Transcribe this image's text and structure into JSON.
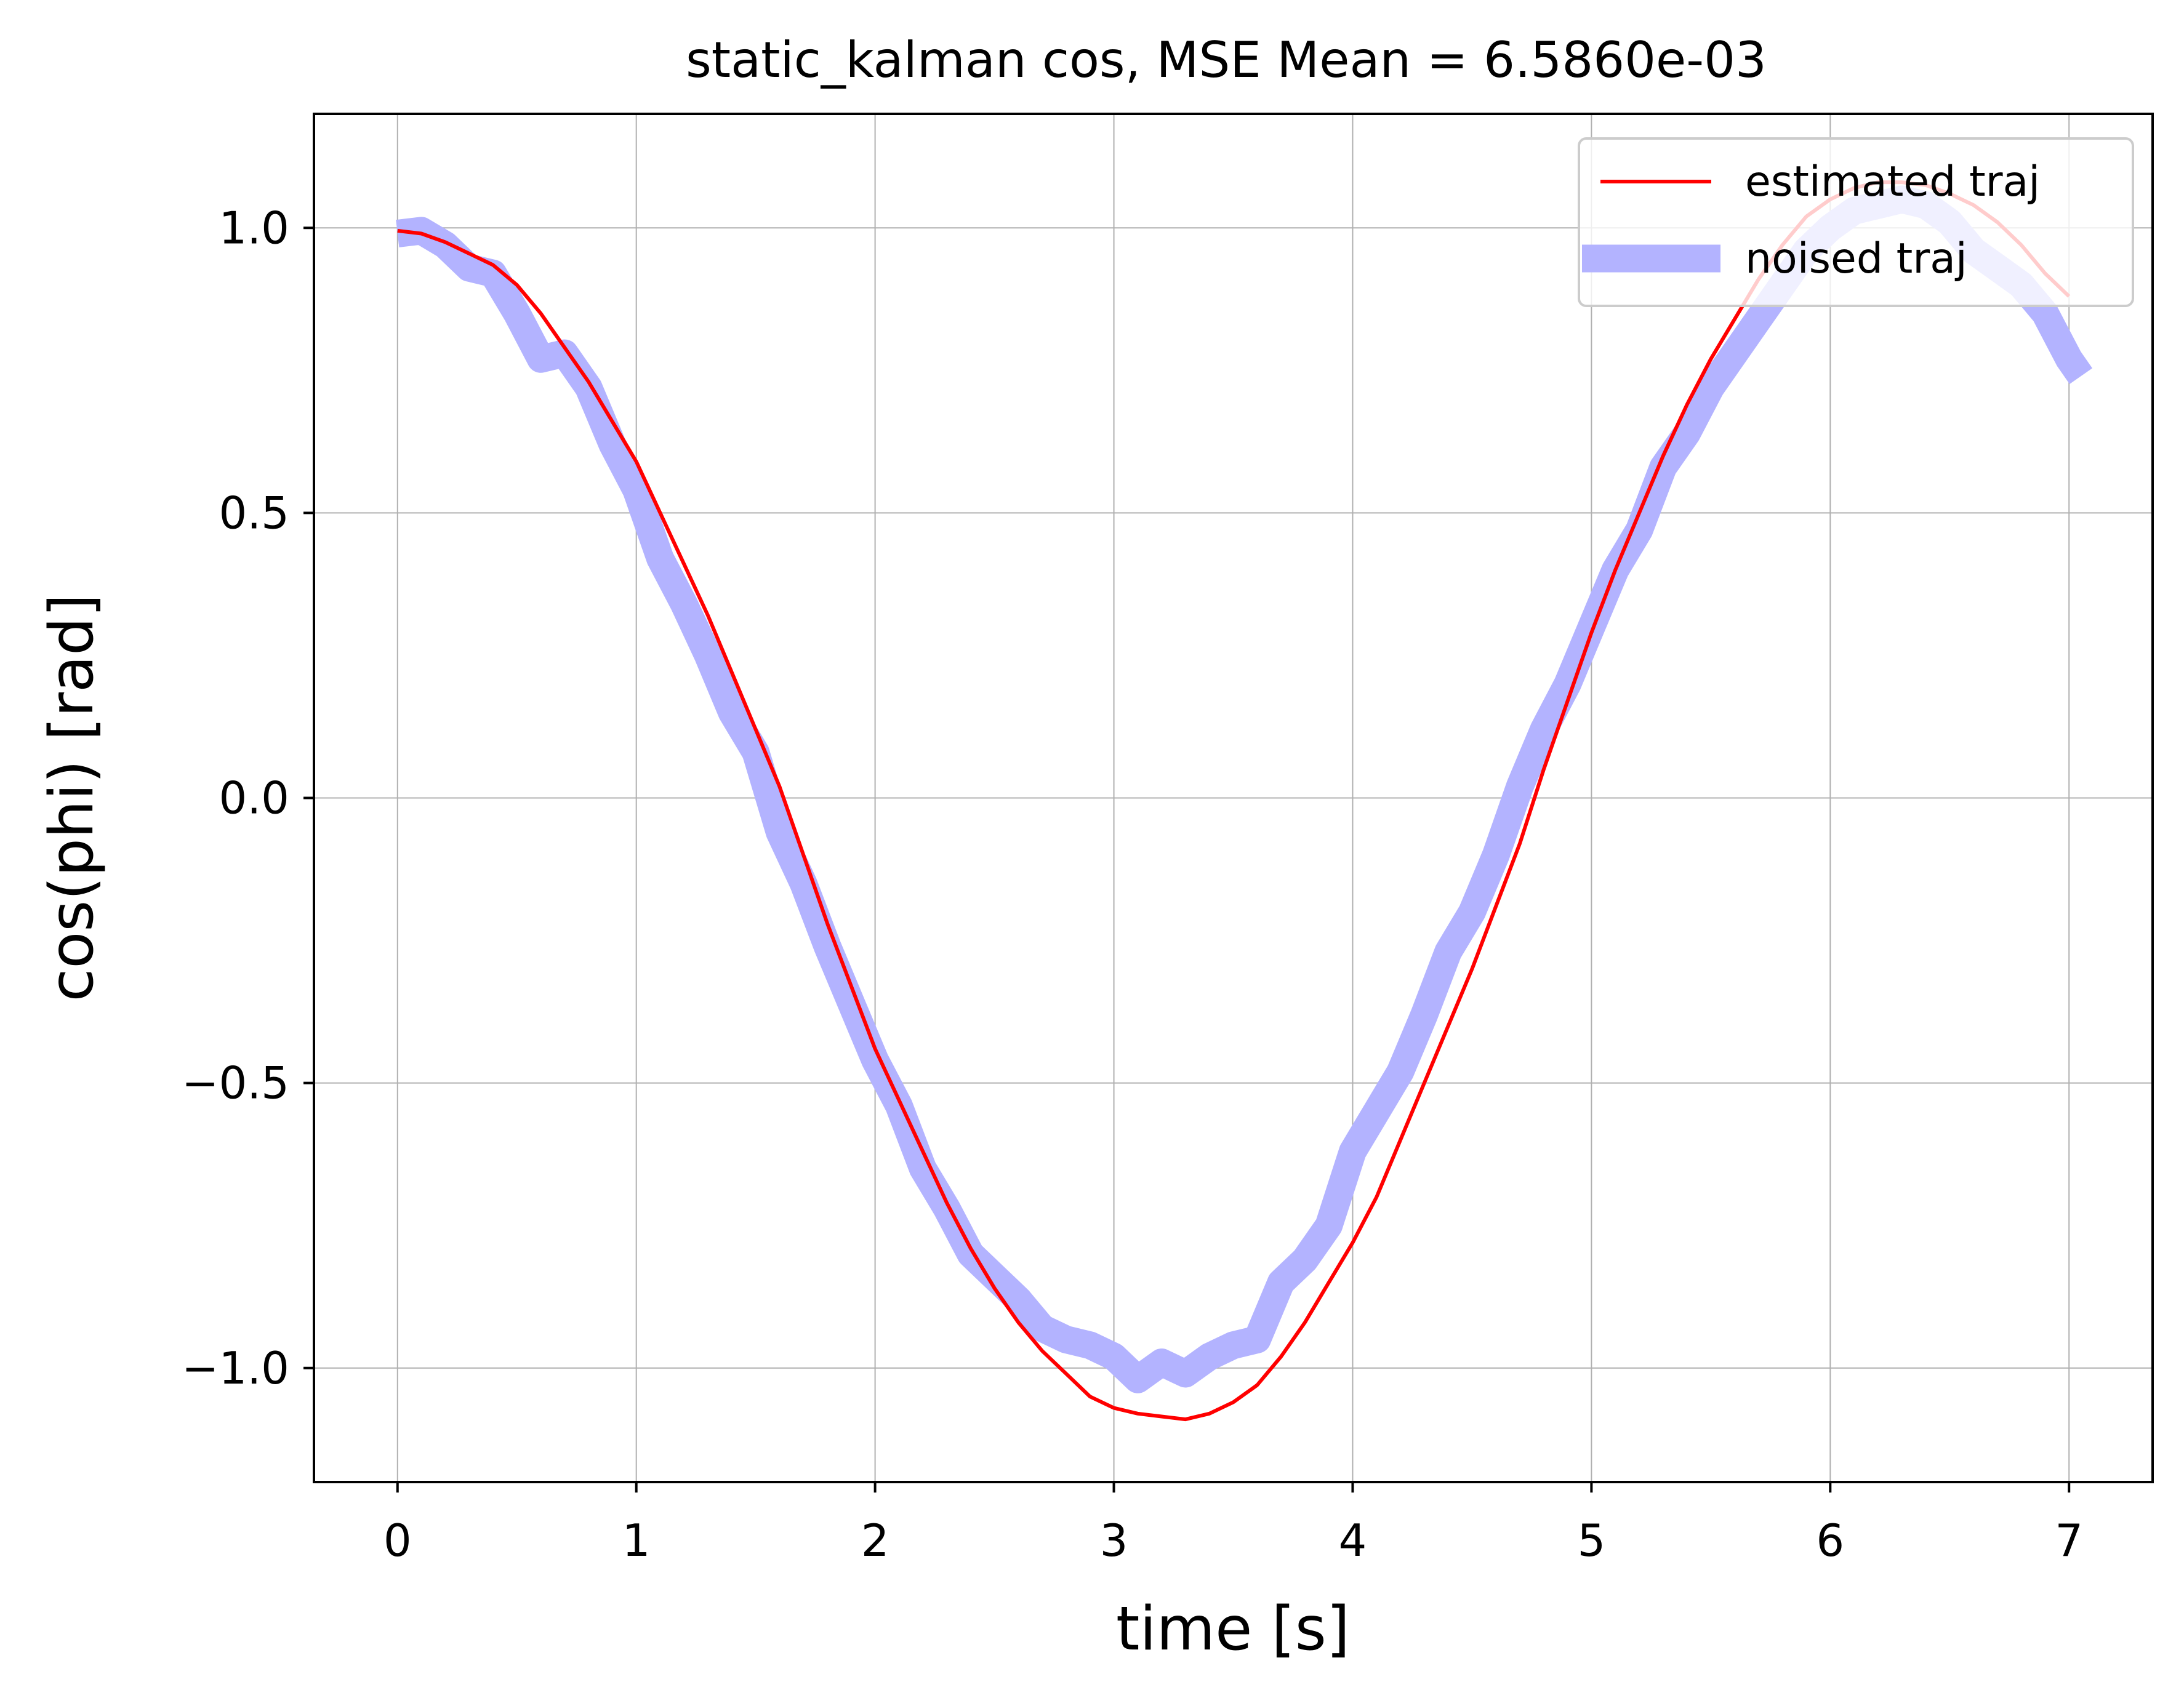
{
  "chart_data": {
    "type": "line",
    "title": "static_kalman cos, MSE Mean = 6.5860e-03",
    "xlabel": "time [s]",
    "ylabel": "cos(phi) [rad]",
    "xlim": [
      -0.35,
      7.35
    ],
    "ylim": [
      -1.2,
      1.2
    ],
    "x_ticks": [
      0,
      1,
      2,
      3,
      4,
      5,
      6,
      7
    ],
    "x_tick_labels": [
      "0",
      "1",
      "2",
      "3",
      "4",
      "5",
      "6",
      "7"
    ],
    "y_ticks": [
      -1.0,
      -0.5,
      0.0,
      0.5,
      1.0
    ],
    "y_tick_labels": [
      "−1.0",
      "−0.5",
      "0.0",
      "0.5",
      "1.0"
    ],
    "grid": true,
    "legend_position": "top-right",
    "series": [
      {
        "name": "estimated traj",
        "color": "#ff0000",
        "x": [
          0,
          0.1,
          0.2,
          0.3,
          0.4,
          0.5,
          0.6,
          0.7,
          0.8,
          0.9,
          1.0,
          1.1,
          1.2,
          1.3,
          1.4,
          1.5,
          1.6,
          1.7,
          1.8,
          1.9,
          2.0,
          2.1,
          2.2,
          2.3,
          2.4,
          2.5,
          2.6,
          2.7,
          2.8,
          2.9,
          3.0,
          3.1,
          3.2,
          3.3,
          3.4,
          3.5,
          3.6,
          3.7,
          3.8,
          3.9,
          4.0,
          4.1,
          4.2,
          4.3,
          4.4,
          4.5,
          4.6,
          4.7,
          4.8,
          4.9,
          5.0,
          5.1,
          5.2,
          5.3,
          5.4,
          5.5,
          5.6,
          5.7,
          5.8,
          5.9,
          6.0,
          6.1,
          6.2,
          6.3,
          6.4,
          6.5,
          6.6,
          6.7,
          6.8,
          6.9,
          7.0
        ],
        "y": [
          0.995,
          0.99,
          0.975,
          0.955,
          0.935,
          0.9,
          0.85,
          0.79,
          0.73,
          0.66,
          0.59,
          0.5,
          0.41,
          0.32,
          0.22,
          0.12,
          0.02,
          -0.1,
          -0.22,
          -0.33,
          -0.44,
          -0.53,
          -0.62,
          -0.71,
          -0.79,
          -0.86,
          -0.92,
          -0.97,
          -1.01,
          -1.05,
          -1.07,
          -1.08,
          -1.085,
          -1.09,
          -1.08,
          -1.06,
          -1.03,
          -0.98,
          -0.92,
          -0.85,
          -0.78,
          -0.7,
          -0.6,
          -0.5,
          -0.4,
          -0.3,
          -0.19,
          -0.08,
          0.05,
          0.17,
          0.29,
          0.4,
          0.5,
          0.6,
          0.69,
          0.77,
          0.84,
          0.91,
          0.97,
          1.02,
          1.05,
          1.07,
          1.08,
          1.08,
          1.075,
          1.06,
          1.04,
          1.01,
          0.97,
          0.92,
          0.88
        ]
      },
      {
        "name": "noised traj",
        "color": "#b3b3ff",
        "x": [
          0,
          0.1,
          0.2,
          0.3,
          0.4,
          0.5,
          0.6,
          0.7,
          0.8,
          0.9,
          1.0,
          1.1,
          1.2,
          1.3,
          1.4,
          1.5,
          1.6,
          1.7,
          1.8,
          1.9,
          2.0,
          2.1,
          2.2,
          2.3,
          2.4,
          2.5,
          2.6,
          2.7,
          2.8,
          2.9,
          3.0,
          3.1,
          3.2,
          3.3,
          3.4,
          3.5,
          3.6,
          3.7,
          3.8,
          3.9,
          4.0,
          4.1,
          4.2,
          4.3,
          4.4,
          4.5,
          4.6,
          4.7,
          4.8,
          4.9,
          5.0,
          5.1,
          5.2,
          5.3,
          5.4,
          5.5,
          5.6,
          5.7,
          5.8,
          5.9,
          6.0,
          6.1,
          6.2,
          6.3,
          6.4,
          6.5,
          6.6,
          6.7,
          6.8,
          6.9,
          7.0,
          7.05
        ],
        "y": [
          0.99,
          0.995,
          0.97,
          0.93,
          0.92,
          0.85,
          0.77,
          0.78,
          0.72,
          0.62,
          0.54,
          0.42,
          0.34,
          0.25,
          0.15,
          0.08,
          -0.06,
          -0.15,
          -0.26,
          -0.36,
          -0.46,
          -0.54,
          -0.65,
          -0.72,
          -0.8,
          -0.84,
          -0.88,
          -0.93,
          -0.95,
          -0.96,
          -0.98,
          -1.02,
          -0.99,
          -1.01,
          -0.98,
          -0.96,
          -0.95,
          -0.85,
          -0.81,
          -0.75,
          -0.62,
          -0.55,
          -0.48,
          -0.38,
          -0.27,
          -0.2,
          -0.1,
          0.02,
          0.12,
          0.2,
          0.3,
          0.4,
          0.47,
          0.58,
          0.64,
          0.72,
          0.78,
          0.84,
          0.9,
          0.96,
          1.0,
          1.03,
          1.04,
          1.05,
          1.04,
          1.01,
          0.96,
          0.93,
          0.9,
          0.85,
          0.77,
          0.74
        ]
      }
    ]
  }
}
